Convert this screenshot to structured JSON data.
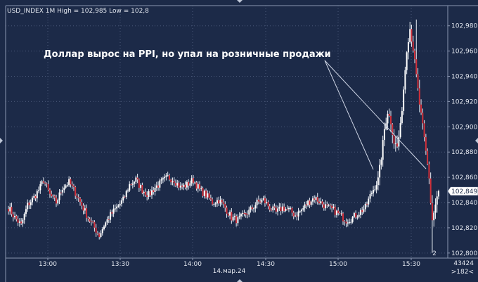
{
  "chart_data": {
    "type": "candlestick",
    "symbol_line": "USD_INDEX 1M High = 102,985 Low = 102,8",
    "annotation": "Доллар вырос на PPI, но упал на розничные продажи",
    "y_ticks": [
      "102,980",
      "102,960",
      "102,940",
      "102,920",
      "102,900",
      "102,880",
      "102,860",
      "102,840",
      "102,820",
      "102,800"
    ],
    "y_tick_values": [
      102.98,
      102.96,
      102.94,
      102.92,
      102.9,
      102.88,
      102.86,
      102.84,
      102.82,
      102.8
    ],
    "ylim": [
      102.796,
      102.996
    ],
    "x_ticks": [
      "13:00",
      "13:30",
      "14:00",
      "14:30",
      "15:00",
      "15:30"
    ],
    "date_label": "14.мар.24",
    "last_price_label": "102,849",
    "last_price": 102.849,
    "footer_right": [
      "43424",
      ">182<"
    ],
    "bottom_marker": "2",
    "high": 102.985,
    "low": 102.8,
    "colors": {
      "up": "#ffffff",
      "down": "#d0303a",
      "wick": "#e8ecf4",
      "grid": "#4a5878",
      "background": "#1c2a48",
      "text": "#e4e8f0"
    }
  },
  "header": {
    "title": "USD_INDEX 1M High = 102,985 Low = 102,8"
  }
}
